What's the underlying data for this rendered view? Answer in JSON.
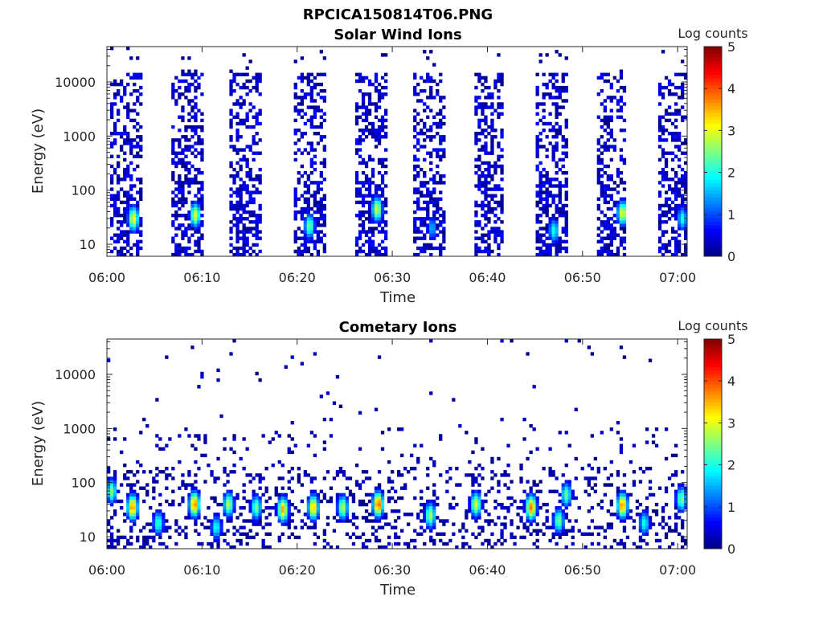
{
  "figure": {
    "filename": "RPCICA150814T06.PNG"
  },
  "chart_data": [
    {
      "type": "heatmap",
      "title": "Solar Wind Ions",
      "xlabel": "Time",
      "ylabel": "Energy (eV)",
      "x_ticks": [
        "06:00",
        "06:10",
        "06:20",
        "06:30",
        "06:40",
        "06:50",
        "07:00"
      ],
      "x_range_minutes": [
        0,
        61
      ],
      "y_scale": "log",
      "y_ticks": [
        "10",
        "100",
        "1000",
        "10000"
      ],
      "y_range_eV": [
        6,
        45000
      ],
      "colorbar": {
        "label": "Log counts",
        "ticks": [
          "0",
          "1",
          "2",
          "3",
          "4",
          "5"
        ],
        "range": [
          0,
          5
        ],
        "colormap": "jet"
      },
      "scan_windows_min": [
        [
          0.2,
          3.7
        ],
        [
          6.8,
          10.1
        ],
        [
          13.0,
          16.3
        ],
        [
          19.7,
          23.0
        ],
        [
          26.2,
          29.5
        ],
        [
          32.3,
          35.6
        ],
        [
          38.6,
          41.8
        ],
        [
          45.2,
          48.3
        ],
        [
          51.4,
          54.7
        ],
        [
          57.9,
          61.0
        ]
      ],
      "peaks": [
        {
          "time_min": 2.8,
          "energy_eV": 30,
          "log_counts": 3.2
        },
        {
          "time_min": 9.3,
          "energy_eV": 35,
          "log_counts": 3.0
        },
        {
          "time_min": 21.3,
          "energy_eV": 22,
          "log_counts": 2.5
        },
        {
          "time_min": 28.4,
          "energy_eV": 45,
          "log_counts": 3.0
        },
        {
          "time_min": 34.2,
          "energy_eV": 20,
          "log_counts": 1.5
        },
        {
          "time_min": 47.0,
          "energy_eV": 18,
          "log_counts": 2.0
        },
        {
          "time_min": 54.2,
          "energy_eV": 38,
          "log_counts": 3.1
        },
        {
          "time_min": 60.5,
          "energy_eV": 30,
          "log_counts": 2.0
        }
      ]
    },
    {
      "type": "heatmap",
      "title": "Cometary Ions",
      "xlabel": "Time",
      "ylabel": "Energy (eV)",
      "x_ticks": [
        "06:00",
        "06:10",
        "06:20",
        "06:30",
        "06:40",
        "06:50",
        "07:00"
      ],
      "x_range_minutes": [
        0,
        61
      ],
      "y_scale": "log",
      "y_ticks": [
        "10",
        "100",
        "1000",
        "10000"
      ],
      "y_range_eV": [
        6,
        45000
      ],
      "colorbar": {
        "label": "Log counts",
        "ticks": [
          "0",
          "1",
          "2",
          "3",
          "4",
          "5"
        ],
        "range": [
          0,
          5
        ],
        "colormap": "jet"
      },
      "peaks": [
        {
          "time_min": 0.5,
          "energy_eV": 70,
          "log_counts": 2.5
        },
        {
          "time_min": 2.7,
          "energy_eV": 35,
          "log_counts": 3.8
        },
        {
          "time_min": 5.4,
          "energy_eV": 18,
          "log_counts": 2.2
        },
        {
          "time_min": 9.2,
          "energy_eV": 40,
          "log_counts": 3.8
        },
        {
          "time_min": 11.5,
          "energy_eV": 15,
          "log_counts": 2.0
        },
        {
          "time_min": 12.8,
          "energy_eV": 40,
          "log_counts": 2.8
        },
        {
          "time_min": 15.7,
          "energy_eV": 35,
          "log_counts": 2.5
        },
        {
          "time_min": 18.5,
          "energy_eV": 32,
          "log_counts": 3.6
        },
        {
          "time_min": 21.7,
          "energy_eV": 35,
          "log_counts": 3.5
        },
        {
          "time_min": 24.8,
          "energy_eV": 35,
          "log_counts": 2.8
        },
        {
          "time_min": 28.5,
          "energy_eV": 40,
          "log_counts": 4.0
        },
        {
          "time_min": 34.0,
          "energy_eV": 25,
          "log_counts": 2.8
        },
        {
          "time_min": 38.8,
          "energy_eV": 40,
          "log_counts": 3.0
        },
        {
          "time_min": 44.6,
          "energy_eV": 35,
          "log_counts": 3.8
        },
        {
          "time_min": 47.5,
          "energy_eV": 20,
          "log_counts": 2.5
        },
        {
          "time_min": 48.3,
          "energy_eV": 60,
          "log_counts": 2.4
        },
        {
          "time_min": 54.2,
          "energy_eV": 38,
          "log_counts": 3.8
        },
        {
          "time_min": 56.5,
          "energy_eV": 18,
          "log_counts": 2.0
        },
        {
          "time_min": 60.4,
          "energy_eV": 50,
          "log_counts": 2.6
        }
      ]
    }
  ]
}
